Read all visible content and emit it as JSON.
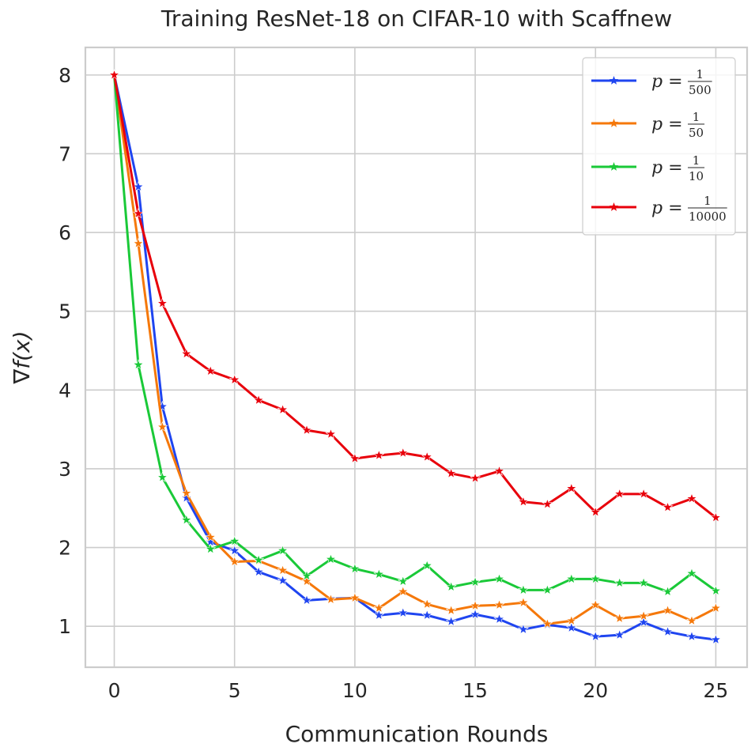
{
  "chart_data": {
    "type": "line",
    "title": "Training ResNet-18 on CIFAR-10 with Scaffnew",
    "xlabel": "Communication Rounds",
    "ylabel": "∇f(x)",
    "xlim": [
      -1.2,
      26.3
    ],
    "ylim": [
      0.48,
      8.35
    ],
    "x_ticks": [
      0,
      5,
      10,
      15,
      20,
      25
    ],
    "y_ticks": [
      1,
      2,
      3,
      4,
      5,
      6,
      7,
      8
    ],
    "grid": true,
    "marker": "star",
    "legend_placement": "top-right",
    "x": [
      0,
      1,
      2,
      3,
      4,
      5,
      6,
      7,
      8,
      9,
      10,
      11,
      12,
      13,
      14,
      15,
      16,
      17,
      18,
      19,
      20,
      21,
      22,
      23,
      24,
      25
    ],
    "series": [
      {
        "name": "p = 1/500",
        "name_prefix": "p =",
        "name_numerator": "1",
        "name_denominator": "500",
        "color": "#1f45f0",
        "values": [
          8.0,
          6.58,
          3.79,
          2.63,
          2.07,
          1.96,
          1.69,
          1.58,
          1.33,
          1.35,
          1.36,
          1.14,
          1.17,
          1.14,
          1.06,
          1.15,
          1.09,
          0.96,
          1.02,
          0.98,
          0.87,
          0.89,
          1.05,
          0.93,
          0.87,
          0.83
        ]
      },
      {
        "name": "p = 1/50",
        "name_prefix": "p =",
        "name_numerator": "1",
        "name_denominator": "50",
        "color": "#f5780a",
        "values": [
          8.0,
          5.86,
          3.53,
          2.69,
          2.13,
          1.82,
          1.83,
          1.71,
          1.57,
          1.34,
          1.36,
          1.23,
          1.44,
          1.28,
          1.2,
          1.26,
          1.27,
          1.3,
          1.03,
          1.07,
          1.27,
          1.1,
          1.13,
          1.2,
          1.07,
          1.23
        ]
      },
      {
        "name": "p = 1/10",
        "name_prefix": "p =",
        "name_numerator": "1",
        "name_denominator": "10",
        "color": "#1ac938",
        "values": [
          8.0,
          4.32,
          2.89,
          2.35,
          1.98,
          2.08,
          1.84,
          1.96,
          1.64,
          1.85,
          1.73,
          1.66,
          1.57,
          1.77,
          1.5,
          1.56,
          1.6,
          1.46,
          1.46,
          1.6,
          1.6,
          1.55,
          1.55,
          1.44,
          1.67,
          1.45
        ]
      },
      {
        "name": "p = 1/10000",
        "name_prefix": "p =",
        "name_numerator": "1",
        "name_denominator": "10000",
        "color": "#e8000b",
        "values": [
          8.0,
          6.24,
          5.1,
          4.46,
          4.24,
          4.13,
          3.87,
          3.75,
          3.49,
          3.44,
          3.13,
          3.17,
          3.2,
          3.15,
          2.94,
          2.88,
          2.97,
          2.58,
          2.55,
          2.75,
          2.45,
          2.68,
          2.68,
          2.51,
          2.62,
          2.38
        ]
      }
    ]
  }
}
